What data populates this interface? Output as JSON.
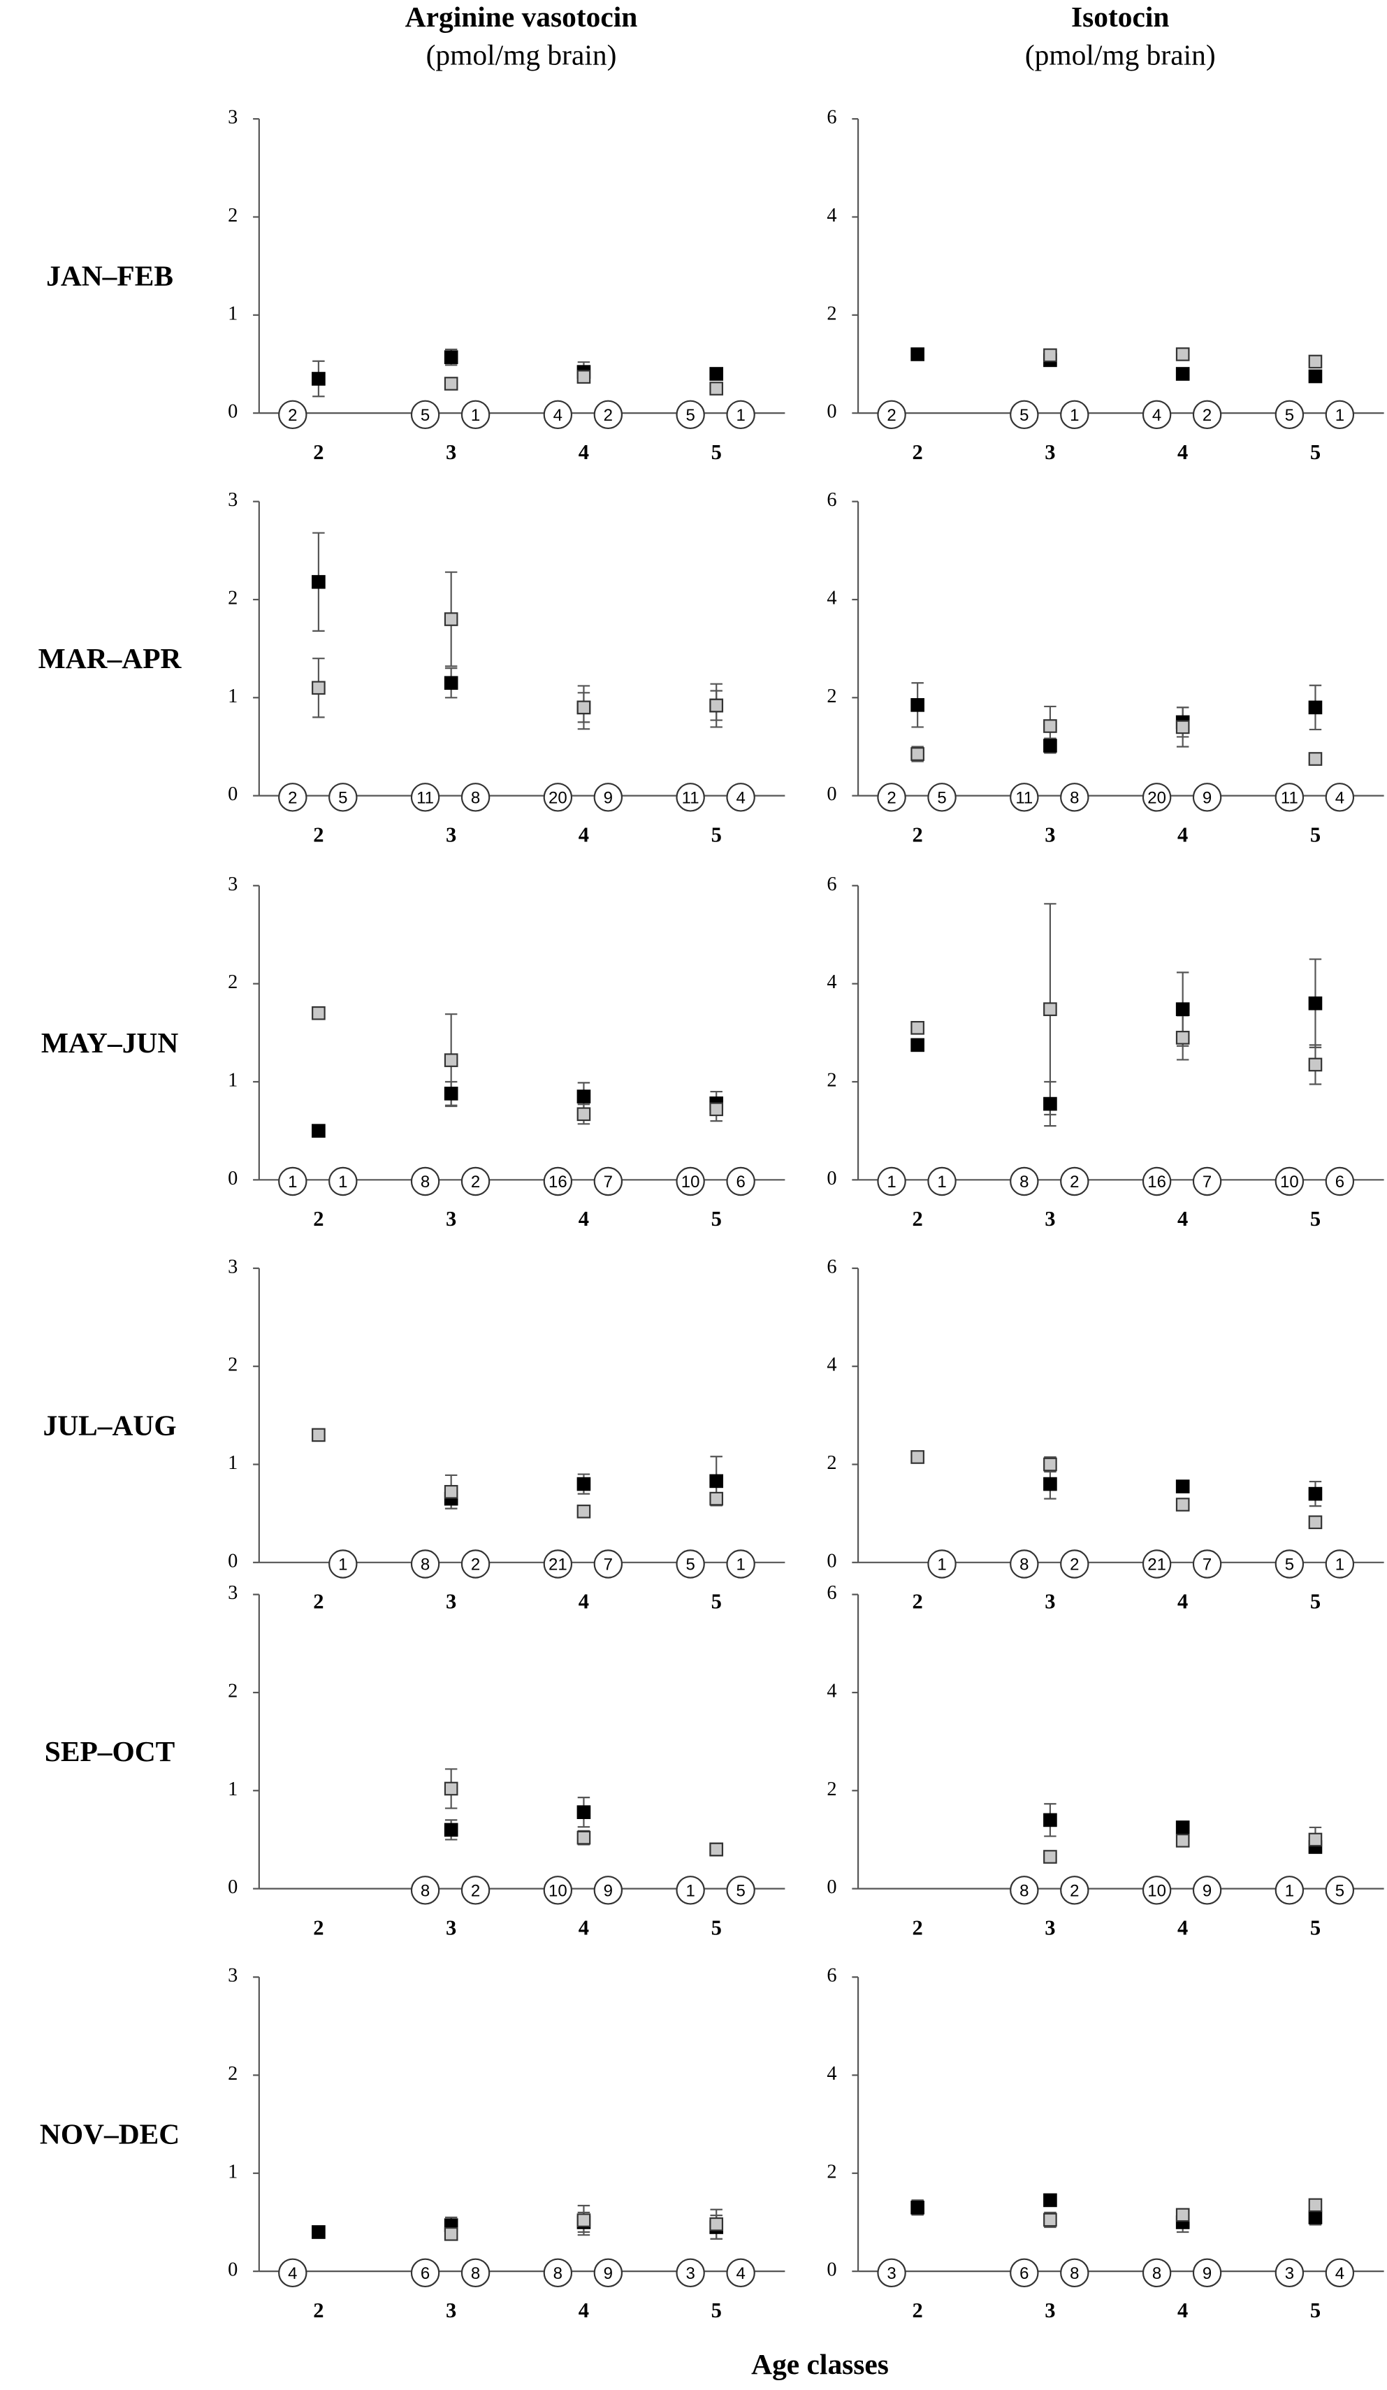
{
  "column_titles": [
    {
      "title": "Arginine vasotocin",
      "unit": "(pmol/mg brain)"
    },
    {
      "title": "Isotocin",
      "unit": "(pmol/mg brain)"
    }
  ],
  "row_labels": [
    "JAN–FEB",
    "MAR–APR",
    "MAY–JUN",
    "JUL–AUG",
    "SEP–OCT",
    "NOV–DEC"
  ],
  "xlabel": "Age classes",
  "chart_data": [
    {
      "type": "errorbar",
      "categories": [
        "2",
        "3",
        "4",
        "5"
      ],
      "ylim": [
        0,
        3
      ],
      "yticks": [
        0,
        1,
        2,
        3
      ],
      "series": [
        {
          "color": "#000000",
          "marker": "filled",
          "values": [
            0.35,
            0.57,
            0.42,
            0.4
          ],
          "errors": [
            0.18,
            0.08,
            0.1,
            0.03
          ],
          "n": [
            2,
            5,
            4,
            5
          ]
        },
        {
          "color": "#c8c8c8",
          "marker": "open",
          "values": [
            null,
            0.3,
            0.37,
            0.25
          ],
          "errors": [
            null,
            0,
            0.05,
            0
          ],
          "n": [
            null,
            1,
            2,
            1
          ]
        }
      ]
    },
    {
      "type": "errorbar",
      "categories": [
        "2",
        "3",
        "4",
        "5"
      ],
      "ylim": [
        0,
        6
      ],
      "yticks": [
        0,
        2,
        4,
        6
      ],
      "series": [
        {
          "color": "#000000",
          "marker": "filled",
          "values": [
            1.2,
            1.08,
            0.8,
            0.75
          ],
          "errors": [
            0,
            0.05,
            0.05,
            0
          ],
          "n": [
            2,
            5,
            4,
            5
          ]
        },
        {
          "color": "#c8c8c8",
          "marker": "open",
          "values": [
            null,
            1.18,
            1.2,
            1.05
          ],
          "errors": [
            null,
            0.05,
            0.1,
            0
          ],
          "n": [
            null,
            1,
            2,
            1
          ]
        }
      ]
    },
    {
      "type": "errorbar",
      "categories": [
        "2",
        "3",
        "4",
        "5"
      ],
      "ylim": [
        0,
        3
      ],
      "yticks": [
        0,
        1,
        2,
        3
      ],
      "series": [
        {
          "color": "#000000",
          "marker": "filled",
          "values": [
            2.18,
            1.15,
            0.9,
            0.92
          ],
          "errors": [
            0.5,
            0.15,
            0.15,
            0.15
          ],
          "n": [
            2,
            11,
            20,
            11
          ]
        },
        {
          "color": "#c8c8c8",
          "marker": "open",
          "values": [
            1.1,
            1.8,
            0.9,
            0.92
          ],
          "errors": [
            0.3,
            0.48,
            0.22,
            0.22
          ],
          "n": [
            5,
            8,
            9,
            4
          ]
        }
      ]
    },
    {
      "type": "errorbar",
      "categories": [
        "2",
        "3",
        "4",
        "5"
      ],
      "ylim": [
        0,
        6
      ],
      "yticks": [
        0,
        2,
        4,
        6
      ],
      "series": [
        {
          "color": "#000000",
          "marker": "filled",
          "values": [
            1.85,
            1.02,
            1.5,
            1.8
          ],
          "errors": [
            0.45,
            0.15,
            0.3,
            0.45
          ],
          "n": [
            2,
            11,
            20,
            11
          ]
        },
        {
          "color": "#c8c8c8",
          "marker": "open",
          "values": [
            0.85,
            1.42,
            1.4,
            0.75
          ],
          "errors": [
            0.15,
            0.4,
            0.4,
            0.05
          ],
          "n": [
            5,
            8,
            9,
            4
          ]
        }
      ]
    },
    {
      "type": "errorbar",
      "categories": [
        "2",
        "3",
        "4",
        "5"
      ],
      "ylim": [
        0,
        3
      ],
      "yticks": [
        0,
        1,
        2,
        3
      ],
      "series": [
        {
          "color": "#000000",
          "marker": "filled",
          "values": [
            0.5,
            0.88,
            0.85,
            0.78
          ],
          "errors": [
            0,
            0.12,
            0.14,
            0.12
          ],
          "n": [
            1,
            8,
            16,
            10
          ]
        },
        {
          "color": "#c8c8c8",
          "marker": "open",
          "values": [
            1.7,
            1.22,
            0.67,
            0.72
          ],
          "errors": [
            0,
            0.47,
            0.1,
            0.12
          ],
          "n": [
            1,
            2,
            7,
            6
          ]
        }
      ]
    },
    {
      "type": "errorbar",
      "categories": [
        "2",
        "3",
        "4",
        "5"
      ],
      "ylim": [
        0,
        6
      ],
      "yticks": [
        0,
        2,
        4,
        6
      ],
      "series": [
        {
          "color": "#000000",
          "marker": "filled",
          "values": [
            2.75,
            1.55,
            3.48,
            3.6
          ],
          "errors": [
            0,
            0.45,
            0.75,
            0.9
          ],
          "n": [
            1,
            8,
            16,
            10
          ]
        },
        {
          "color": "#c8c8c8",
          "marker": "open",
          "values": [
            3.1,
            3.48,
            2.9,
            2.35
          ],
          "errors": [
            0,
            2.15,
            0.45,
            0.4
          ],
          "n": [
            1,
            2,
            7,
            6
          ]
        }
      ]
    },
    {
      "type": "errorbar",
      "categories": [
        "2",
        "3",
        "4",
        "5"
      ],
      "ylim": [
        0,
        3
      ],
      "yticks": [
        0,
        1,
        2,
        3
      ],
      "series": [
        {
          "color": "#000000",
          "marker": "filled",
          "values": [
            null,
            0.65,
            0.8,
            0.83
          ],
          "errors": [
            null,
            0.1,
            0.1,
            0.25
          ],
          "n": [
            null,
            8,
            21,
            5
          ]
        },
        {
          "color": "#c8c8c8",
          "marker": "open",
          "values": [
            1.3,
            0.72,
            0.52,
            0.65
          ],
          "errors": [
            0,
            0.17,
            0.06,
            0
          ],
          "n": [
            1,
            2,
            7,
            1
          ]
        }
      ]
    },
    {
      "type": "errorbar",
      "categories": [
        "2",
        "3",
        "4",
        "5"
      ],
      "ylim": [
        0,
        6
      ],
      "yticks": [
        0,
        2,
        4,
        6
      ],
      "series": [
        {
          "color": "#000000",
          "marker": "filled",
          "values": [
            null,
            1.6,
            1.55,
            1.4
          ],
          "errors": [
            null,
            0.3,
            0.1,
            0.25
          ],
          "n": [
            null,
            8,
            21,
            5
          ]
        },
        {
          "color": "#c8c8c8",
          "marker": "open",
          "values": [
            2.15,
            2.0,
            1.18,
            0.82
          ],
          "errors": [
            0,
            0.15,
            0,
            0
          ],
          "n": [
            1,
            2,
            7,
            1
          ]
        }
      ]
    },
    {
      "type": "errorbar",
      "categories": [
        "2",
        "3",
        "4",
        "5"
      ],
      "ylim": [
        0,
        3
      ],
      "yticks": [
        0,
        1,
        2,
        3
      ],
      "series": [
        {
          "color": "#000000",
          "marker": "filled",
          "values": [
            null,
            0.6,
            0.78,
            0.4
          ],
          "errors": [
            null,
            0.1,
            0.15,
            0
          ],
          "n": [
            null,
            8,
            10,
            1
          ]
        },
        {
          "color": "#c8c8c8",
          "marker": "open",
          "values": [
            null,
            1.02,
            0.52,
            0.4
          ],
          "errors": [
            null,
            0.2,
            0.07,
            0.03
          ],
          "n": [
            null,
            2,
            9,
            5
          ]
        }
      ]
    },
    {
      "type": "errorbar",
      "categories": [
        "2",
        "3",
        "4",
        "5"
      ],
      "ylim": [
        0,
        6
      ],
      "yticks": [
        0,
        2,
        4,
        6
      ],
      "series": [
        {
          "color": "#000000",
          "marker": "filled",
          "values": [
            null,
            1.4,
            1.25,
            0.85
          ],
          "errors": [
            null,
            0.33,
            0.1,
            0.05
          ],
          "n": [
            null,
            8,
            10,
            1
          ]
        },
        {
          "color": "#c8c8c8",
          "marker": "open",
          "values": [
            null,
            0.65,
            0.98,
            1.0
          ],
          "errors": [
            null,
            0,
            0.12,
            0.25
          ],
          "n": [
            null,
            2,
            9,
            5
          ]
        }
      ]
    },
    {
      "type": "errorbar",
      "categories": [
        "2",
        "3",
        "4",
        "5"
      ],
      "ylim": [
        0,
        3
      ],
      "yticks": [
        0,
        1,
        2,
        3
      ],
      "series": [
        {
          "color": "#000000",
          "marker": "filled",
          "values": [
            0.4,
            0.47,
            0.5,
            0.45
          ],
          "errors": [
            0.06,
            0.08,
            0.1,
            0.12
          ],
          "n": [
            4,
            6,
            8,
            3
          ]
        },
        {
          "color": "#c8c8c8",
          "marker": "open",
          "values": [
            null,
            0.38,
            0.52,
            0.48
          ],
          "errors": [
            null,
            0.05,
            0.15,
            0.15
          ],
          "n": [
            null,
            8,
            9,
            4
          ]
        }
      ]
    },
    {
      "type": "errorbar",
      "categories": [
        "2",
        "3",
        "4",
        "5"
      ],
      "ylim": [
        0,
        6
      ],
      "yticks": [
        0,
        2,
        4,
        6
      ],
      "series": [
        {
          "color": "#000000",
          "marker": "filled",
          "values": [
            1.3,
            1.45,
            1.0,
            1.1
          ],
          "errors": [
            0.15,
            0.1,
            0.2,
            0.15
          ],
          "n": [
            3,
            6,
            8,
            3
          ]
        },
        {
          "color": "#c8c8c8",
          "marker": "open",
          "values": [
            null,
            1.05,
            1.15,
            1.35
          ],
          "errors": [
            null,
            0.15,
            0.1,
            0.1
          ],
          "n": [
            null,
            8,
            9,
            4
          ]
        }
      ]
    }
  ]
}
